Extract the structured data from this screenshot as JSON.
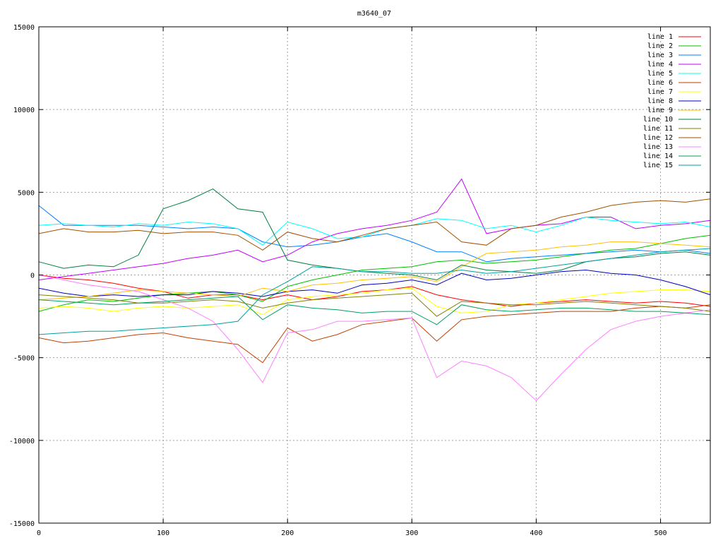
{
  "chart_data": {
    "type": "line",
    "title": "m3640_07",
    "xlabel": "",
    "ylabel": "",
    "xlim": [
      0,
      540
    ],
    "ylim": [
      -15000,
      15000
    ],
    "x_ticks": [
      0,
      100,
      200,
      300,
      400,
      500
    ],
    "y_ticks": [
      -15000,
      -10000,
      -5000,
      0,
      5000,
      10000,
      15000
    ],
    "grid": true,
    "legend_position": "top-right",
    "x": [
      0,
      20,
      40,
      60,
      80,
      100,
      120,
      140,
      160,
      180,
      200,
      220,
      240,
      260,
      280,
      300,
      320,
      340,
      360,
      380,
      400,
      420,
      440,
      460,
      480,
      500,
      520,
      540
    ],
    "series": [
      {
        "name": "line 1",
        "color": "#ff0000",
        "values": [
          0,
          -200,
          -300,
          -500,
          -800,
          -1000,
          -1400,
          -1200,
          -1200,
          -1500,
          -1200,
          -1500,
          -1300,
          -1000,
          -900,
          -700,
          -1200,
          -1500,
          -1700,
          -1900,
          -1700,
          -1600,
          -1500,
          -1600,
          -1700,
          -1600,
          -1700,
          -1900
        ]
      },
      {
        "name": "line 2",
        "color": "#00c000",
        "values": [
          -2200,
          -1800,
          -1500,
          -1600,
          -1400,
          -1200,
          -1100,
          -1000,
          -1200,
          -1600,
          -700,
          -300,
          0,
          300,
          400,
          500,
          800,
          900,
          700,
          800,
          900,
          1100,
          1300,
          1500,
          1600,
          1900,
          2200,
          2400
        ]
      },
      {
        "name": "line 3",
        "color": "#0080ff",
        "values": [
          4200,
          3000,
          3000,
          3000,
          3000,
          2900,
          2800,
          2900,
          2800,
          2000,
          1700,
          1800,
          2000,
          2300,
          2500,
          2000,
          1400,
          1400,
          800,
          1000,
          1100,
          1200,
          1300,
          1400,
          1500,
          1400,
          1500,
          1300
        ]
      },
      {
        "name": "line 4",
        "color": "#c000ff",
        "values": [
          -300,
          -100,
          100,
          300,
          500,
          700,
          1000,
          1200,
          1500,
          800,
          1200,
          2000,
          2500,
          2800,
          3000,
          3300,
          3800,
          5800,
          2500,
          2800,
          3000,
          3100,
          3500,
          3500,
          2800,
          3000,
          3100,
          3300
        ]
      },
      {
        "name": "line 5",
        "color": "#00ffff",
        "values": [
          3000,
          3100,
          3000,
          2900,
          3100,
          3000,
          3200,
          3100,
          2800,
          1800,
          3200,
          2800,
          2200,
          2300,
          2800,
          3000,
          3400,
          3300,
          2800,
          3000,
          2600,
          3000,
          3500,
          3300,
          3200,
          3100,
          3200,
          2900
        ]
      },
      {
        "name": "line 6",
        "color": "#c04000",
        "values": [
          -3800,
          -4100,
          -4000,
          -3800,
          -3600,
          -3500,
          -3800,
          -4000,
          -4200,
          -5300,
          -3200,
          -4000,
          -3600,
          -3000,
          -2800,
          -2600,
          -4000,
          -2700,
          -2500,
          -2400,
          -2300,
          -2200,
          -2200,
          -2200,
          -2000,
          -1900,
          -2000,
          -1800
        ]
      },
      {
        "name": "line 7",
        "color": "#ffff00",
        "values": [
          -2000,
          -1900,
          -2000,
          -2200,
          -2000,
          -1900,
          -2000,
          -1900,
          -1800,
          -2400,
          -1500,
          -1300,
          -1200,
          -1100,
          -900,
          -800,
          -1900,
          -2300,
          -2200,
          -1800,
          -1700,
          -1500,
          -1300,
          -1100,
          -1000,
          -900,
          -900,
          -1000
        ]
      },
      {
        "name": "line 8",
        "color": "#0000c0",
        "values": [
          -800,
          -1100,
          -1300,
          -1200,
          -1300,
          -1200,
          -1200,
          -1000,
          -1100,
          -1300,
          -1000,
          -900,
          -1100,
          -600,
          -500,
          -300,
          -600,
          100,
          -300,
          -200,
          0,
          200,
          300,
          100,
          0,
          -300,
          -700,
          -1200
        ]
      },
      {
        "name": "line 9",
        "color": "#ffc000",
        "values": [
          -1500,
          -1400,
          -1300,
          -1100,
          -900,
          -1000,
          -1100,
          -1200,
          -1300,
          -800,
          -1000,
          -600,
          -500,
          -300,
          -200,
          -100,
          -400,
          500,
          1300,
          1400,
          1500,
          1700,
          1800,
          2000,
          2000,
          1900,
          1800,
          1700
        ]
      },
      {
        "name": "line 10",
        "color": "#008040",
        "values": [
          800,
          400,
          600,
          500,
          1200,
          4000,
          4500,
          5200,
          4000,
          3800,
          900,
          600,
          400,
          200,
          100,
          0,
          -300,
          600,
          300,
          200,
          100,
          300,
          800,
          1000,
          1100,
          1300,
          1400,
          1200
        ]
      },
      {
        "name": "line 11",
        "color": "#808000",
        "values": [
          -1200,
          -1300,
          -1400,
          -1500,
          -1700,
          -1700,
          -1600,
          -1500,
          -1600,
          -2000,
          -1700,
          -1500,
          -1400,
          -1300,
          -1200,
          -1100,
          -2500,
          -1600,
          -1700,
          -1800,
          -1800,
          -1700,
          -1600,
          -1700,
          -1800,
          -1900,
          -2000,
          -2200
        ]
      },
      {
        "name": "line 12",
        "color": "#a05000",
        "values": [
          2500,
          2800,
          2600,
          2600,
          2700,
          2500,
          2600,
          2600,
          2400,
          1500,
          2600,
          2200,
          2000,
          2400,
          2800,
          3000,
          3200,
          2000,
          1800,
          2800,
          3000,
          3500,
          3800,
          4200,
          4400,
          4500,
          4400,
          4600
        ]
      },
      {
        "name": "line 13",
        "color": "#ff80ff",
        "values": [
          0,
          -300,
          -600,
          -800,
          -1000,
          -1500,
          -2000,
          -2800,
          -4500,
          -6500,
          -3500,
          -3300,
          -2800,
          -2800,
          -2700,
          -2600,
          -6200,
          -5200,
          -5500,
          -6200,
          -7600,
          -6000,
          -4500,
          -3300,
          -2800,
          -2500,
          -2300,
          -2100
        ]
      },
      {
        "name": "line 14",
        "color": "#00a060",
        "values": [
          -1500,
          -1600,
          -1700,
          -1800,
          -1700,
          -1600,
          -1500,
          -1400,
          -1300,
          -2700,
          -1800,
          -2000,
          -2100,
          -2300,
          -2200,
          -2200,
          -3000,
          -1800,
          -2100,
          -2200,
          -2100,
          -2000,
          -2000,
          -2100,
          -2200,
          -2200,
          -2300,
          -2400
        ]
      },
      {
        "name": "line 15",
        "color": "#00a0a0",
        "values": [
          -3600,
          -3500,
          -3400,
          -3400,
          -3300,
          -3200,
          -3100,
          -3000,
          -2800,
          -1200,
          -400,
          500,
          400,
          200,
          200,
          100,
          100,
          300,
          100,
          200,
          400,
          600,
          800,
          1000,
          1200,
          1400,
          1500,
          1600
        ]
      }
    ]
  }
}
